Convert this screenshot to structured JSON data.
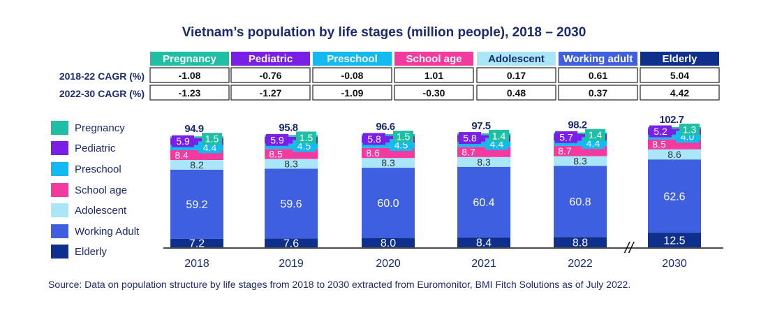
{
  "title": "Vietnam’s population by life stages (million people), 2018 – 2030",
  "source": "Source: Data on population structure by life stages from 2018 to 2030 extracted from Euromonitor, BMI Fitch Solutions as of July 2022.",
  "colors": {
    "Pregnancy": "#1fbfa6",
    "Pediatric": "#7a20e6",
    "Preschool": "#14b9f0",
    "School age": "#f43a9e",
    "Adolescent": "#a8e6f8",
    "Working adult": "#3d5fe0",
    "Elderly": "#0e2f8c",
    "text_dark": "#1a2b6e"
  },
  "cagr_table": {
    "headers": [
      "Pregnancy",
      "Pediatric",
      "Preschool",
      "School age",
      "Adolescent",
      "Working adult",
      "Elderly"
    ],
    "rows": [
      {
        "label": "2018-22 CAGR (%)",
        "values": [
          "-1.08",
          "-0.76",
          "-0.08",
          "1.01",
          "0.17",
          "0.61",
          "5.04"
        ]
      },
      {
        "label": "2022-30 CAGR (%)",
        "values": [
          "-1.23",
          "-1.27",
          "-1.09",
          "-0.30",
          "0.48",
          "0.37",
          "4.42"
        ]
      }
    ]
  },
  "chart_data": {
    "type": "bar",
    "stacked": true,
    "categories": [
      "2018",
      "2019",
      "2020",
      "2021",
      "2022",
      "2030"
    ],
    "totals": [
      "94.9",
      "95.8",
      "96.6",
      "97.5",
      "98.2",
      "102.7"
    ],
    "axis_break_label": "//",
    "series": [
      {
        "name": "Elderly",
        "values": [
          7.2,
          7.6,
          8.0,
          8.4,
          8.8,
          12.5
        ]
      },
      {
        "name": "Working Adult",
        "values": [
          59.2,
          59.6,
          60.0,
          60.4,
          60.8,
          62.6
        ]
      },
      {
        "name": "Adolescent",
        "values": [
          8.2,
          8.3,
          8.3,
          8.3,
          8.3,
          8.6
        ]
      },
      {
        "name": "School age",
        "values": [
          8.4,
          8.5,
          8.6,
          8.7,
          8.7,
          8.5
        ]
      },
      {
        "name": "Preschool",
        "values": [
          4.4,
          4.5,
          4.5,
          4.4,
          4.4,
          4.0
        ]
      },
      {
        "name": "Pediatric",
        "values": [
          5.9,
          5.9,
          5.8,
          5.8,
          5.7,
          5.2
        ]
      },
      {
        "name": "Pregnancy",
        "values": [
          1.5,
          1.5,
          1.5,
          1.4,
          1.4,
          1.3
        ]
      }
    ],
    "legend": {
      "position": "left",
      "items": [
        "Pregnancy",
        "Pediatric",
        "Preschool",
        "School age",
        "Adolescent",
        "Working Adult",
        "Elderly"
      ]
    }
  }
}
